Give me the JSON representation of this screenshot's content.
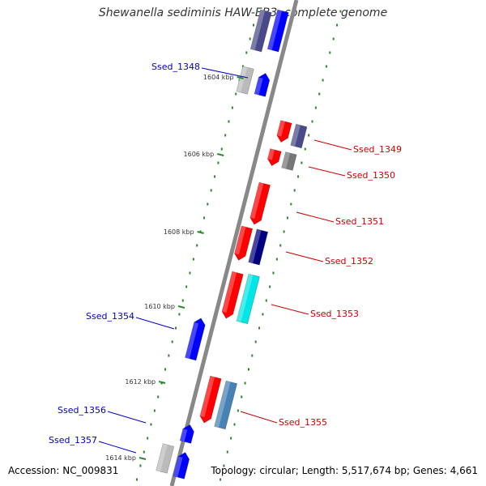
{
  "title": "Shewanella sediminis HAW-EB3, complete genome",
  "footer": {
    "accession": "Accession: NC_009831",
    "topology": "Topology: circular; Length: 5,517,674 bp; Genes: 4,661"
  },
  "colors": {
    "backbone": "#888888",
    "tick": "#2a8a2a",
    "label_reverse": "#0000cc",
    "label_forward": "#cc0000",
    "red": "#ff0000",
    "blue": "#0000ff",
    "purple": "#4a4a8a",
    "navy": "#000080",
    "cyan": "#00e5e5",
    "steel": "#4682b4",
    "gray": "#777777",
    "silver": "#bbbbbb"
  },
  "ruler": [
    {
      "kbp": 1604,
      "label": "1604 kbp"
    },
    {
      "kbp": 1606,
      "label": "1606 kbp"
    },
    {
      "kbp": 1608,
      "label": "1608 kbp"
    },
    {
      "kbp": 1610,
      "label": "1610 kbp"
    },
    {
      "kbp": 1612,
      "label": "1612 kbp"
    },
    {
      "kbp": 1614,
      "label": "1614 kbp"
    }
  ],
  "labeled_genes": [
    {
      "name": "Ssed_1348",
      "strand": "reverse"
    },
    {
      "name": "Ssed_1349",
      "strand": "forward"
    },
    {
      "name": "Ssed_1350",
      "strand": "forward"
    },
    {
      "name": "Ssed_1351",
      "strand": "forward"
    },
    {
      "name": "Ssed_1352",
      "strand": "forward"
    },
    {
      "name": "Ssed_1353",
      "strand": "forward"
    },
    {
      "name": "Ssed_1354",
      "strand": "reverse"
    },
    {
      "name": "Ssed_1355",
      "strand": "forward"
    },
    {
      "name": "Ssed_1356",
      "strand": "reverse"
    },
    {
      "name": "Ssed_1357",
      "strand": "reverse"
    }
  ]
}
